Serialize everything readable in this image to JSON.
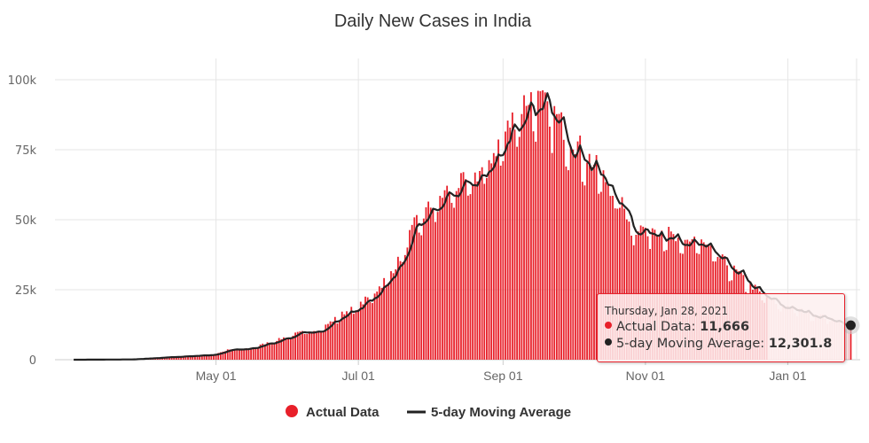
{
  "chart_data": {
    "type": "bar",
    "title": "Daily New Cases in India",
    "xlabel": "",
    "ylabel": "",
    "ylim": [
      0,
      105000
    ],
    "y_ticks": [
      {
        "value": 0,
        "label": "0"
      },
      {
        "value": 25000,
        "label": "25k"
      },
      {
        "value": 50000,
        "label": "50k"
      },
      {
        "value": 75000,
        "label": "75k"
      },
      {
        "value": 100000,
        "label": "100k"
      }
    ],
    "x_ticks": [
      {
        "date": "2020-05-01",
        "label": "May 01"
      },
      {
        "date": "2020-07-01",
        "label": "Jul 01"
      },
      {
        "date": "2020-09-01",
        "label": "Sep 01"
      },
      {
        "date": "2020-11-01",
        "label": "Nov 01"
      },
      {
        "date": "2021-01-01",
        "label": "Jan 01"
      }
    ],
    "x_range": [
      "2020-02-22",
      "2021-02-01"
    ],
    "start_date": "2020-03-01",
    "end_date": "2021-01-28",
    "grid": true,
    "legend_position": "bottom",
    "anchors": [
      [
        "2020-03-01",
        0
      ],
      [
        "2020-03-25",
        100
      ],
      [
        "2020-04-10",
        900
      ],
      [
        "2020-04-25",
        1600
      ],
      [
        "2020-05-01",
        2000
      ],
      [
        "2020-05-05",
        3500
      ],
      [
        "2020-05-15",
        4000
      ],
      [
        "2020-05-25",
        6500
      ],
      [
        "2020-06-05",
        9500
      ],
      [
        "2020-06-15",
        11000
      ],
      [
        "2020-06-25",
        17000
      ],
      [
        "2020-07-01",
        19000
      ],
      [
        "2020-07-10",
        26000
      ],
      [
        "2020-07-18",
        35000
      ],
      [
        "2020-07-25",
        48000
      ],
      [
        "2020-08-01",
        55000
      ],
      [
        "2020-08-10",
        62000
      ],
      [
        "2020-08-18",
        64000
      ],
      [
        "2020-08-25",
        70000
      ],
      [
        "2020-09-01",
        80000
      ],
      [
        "2020-09-08",
        90000
      ],
      [
        "2020-09-12",
        94000
      ],
      [
        "2020-09-16",
        93000
      ],
      [
        "2020-09-22",
        89000
      ],
      [
        "2020-09-28",
        82000
      ],
      [
        "2020-10-05",
        75000
      ],
      [
        "2020-10-12",
        68000
      ],
      [
        "2020-10-20",
        58000
      ],
      [
        "2020-10-28",
        47000
      ],
      [
        "2020-11-05",
        47500
      ],
      [
        "2020-11-10",
        46000
      ],
      [
        "2020-11-16",
        41000
      ],
      [
        "2020-11-22",
        44000
      ],
      [
        "2020-11-29",
        39000
      ],
      [
        "2020-12-05",
        35000
      ],
      [
        "2020-12-12",
        30000
      ],
      [
        "2020-12-20",
        24000
      ],
      [
        "2020-12-28",
        20000
      ],
      [
        "2021-01-05",
        18000
      ],
      [
        "2021-01-14",
        16000
      ],
      [
        "2021-01-22",
        14000
      ],
      [
        "2021-01-28",
        11666
      ]
    ],
    "series": [
      {
        "name": "Actual Data",
        "type": "bar",
        "color": "#e8202a"
      },
      {
        "name": "5-day Moving Average",
        "type": "line",
        "color": "#222222"
      }
    ],
    "highlight": {
      "date": "2021-01-28",
      "actual": 11666,
      "moving_average": 12301.8
    }
  },
  "legend": {
    "items": [
      {
        "label": "Actual Data",
        "color": "#e8202a"
      },
      {
        "label": "5-day Moving Average",
        "color": "#222222"
      }
    ]
  },
  "tooltip": {
    "date_label": "Thursday, Jan 28, 2021",
    "actual_label": "Actual Data: ",
    "actual_value": "11,666",
    "ma_label": "5-day Moving Average: ",
    "ma_value": "12,301.8",
    "actual_color": "#e8202a",
    "ma_color": "#222222"
  }
}
